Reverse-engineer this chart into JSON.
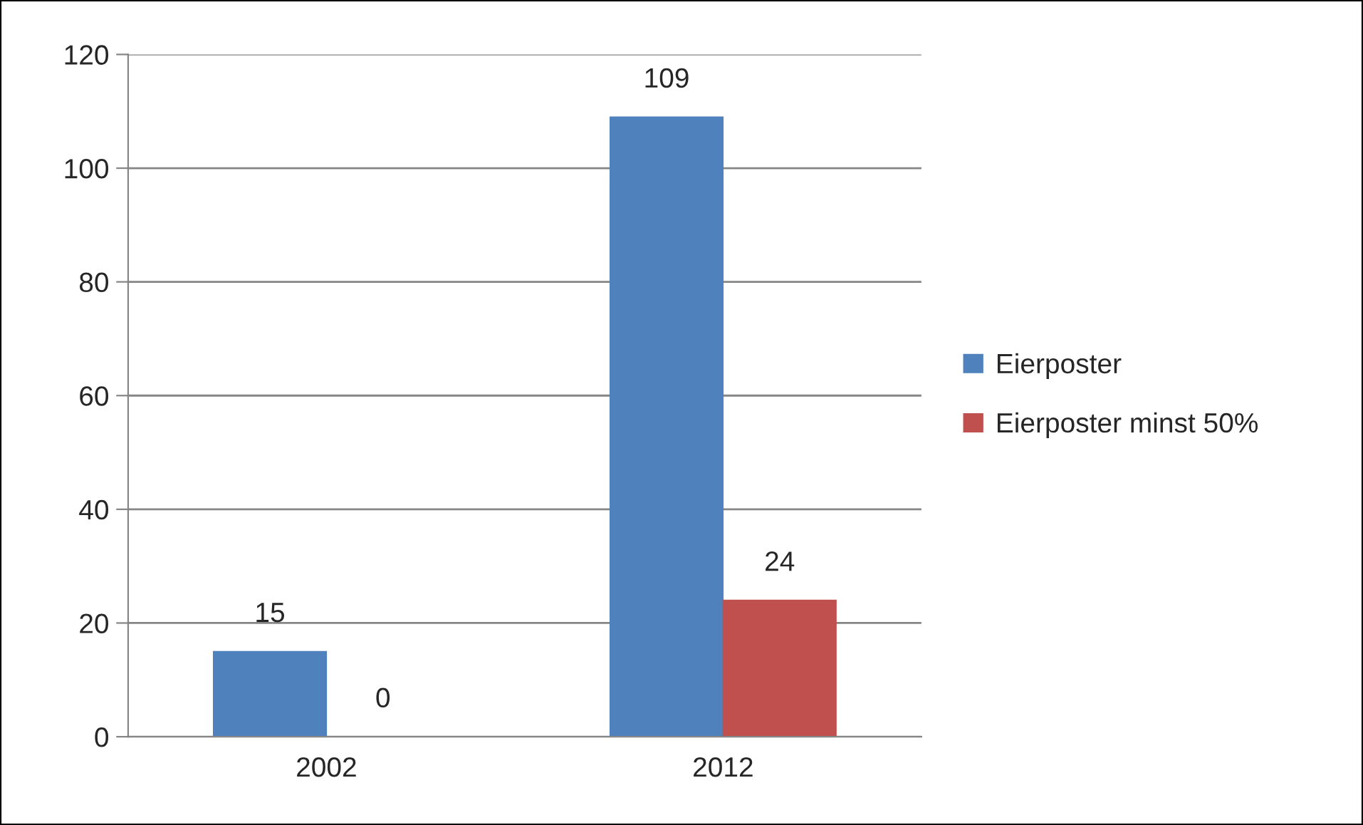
{
  "chart_data": {
    "type": "bar",
    "categories": [
      "2002",
      "2012"
    ],
    "series": [
      {
        "name": "Eierposter",
        "color": "#4f81bd",
        "values": [
          15,
          109
        ]
      },
      {
        "name": "Eierposter minst 50%",
        "color": "#c0504d",
        "values": [
          0,
          24
        ]
      }
    ],
    "ylim": [
      0,
      120
    ],
    "yticks": [
      0,
      20,
      40,
      60,
      80,
      100,
      120
    ],
    "grid": "y",
    "legend": "right",
    "data_labels": true
  }
}
